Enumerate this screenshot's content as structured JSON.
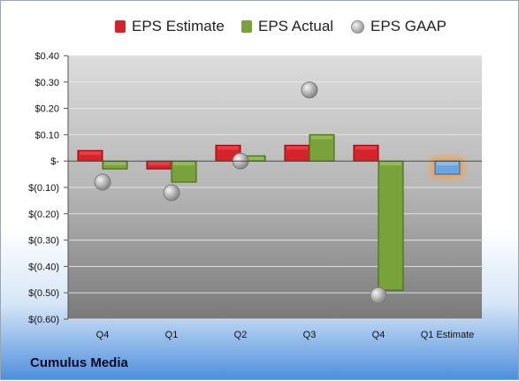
{
  "company": "Cumulus Media",
  "chart_data": {
    "type": "bar",
    "categories": [
      "Q4",
      "Q1",
      "Q2",
      "Q3",
      "Q4",
      "Q1 Estimate"
    ],
    "series": [
      {
        "name": "EPS Estimate",
        "values": [
          0.04,
          -0.03,
          0.06,
          0.06,
          0.06,
          null
        ],
        "color": "#d3232b"
      },
      {
        "name": "EPS Actual",
        "values": [
          -0.03,
          -0.08,
          0.02,
          0.1,
          -0.49,
          null
        ],
        "color": "#7aa23b"
      },
      {
        "name": "EPS GAAP",
        "values": [
          -0.08,
          -0.12,
          0.0,
          0.27,
          -0.51,
          null
        ],
        "color": "#a8a8a8"
      },
      {
        "name": "Q1 Estimate",
        "values": [
          null,
          null,
          null,
          null,
          null,
          -0.05
        ],
        "color": "#6fa3dd"
      }
    ],
    "yticks": [
      0.4,
      0.3,
      0.2,
      0.1,
      0,
      -0.1,
      -0.2,
      -0.3,
      -0.4,
      -0.5,
      -0.6
    ],
    "ytick_labels": [
      "$0.40",
      "$0.30",
      "$0.20",
      "$0.10",
      "$-",
      "$(0.10)",
      "$(0.20)",
      "$(0.30)",
      "$(0.40)",
      "$(0.50)",
      "$(0.60)"
    ],
    "ylim": [
      -0.6,
      0.4
    ],
    "legend_position": "top",
    "grid": true
  }
}
